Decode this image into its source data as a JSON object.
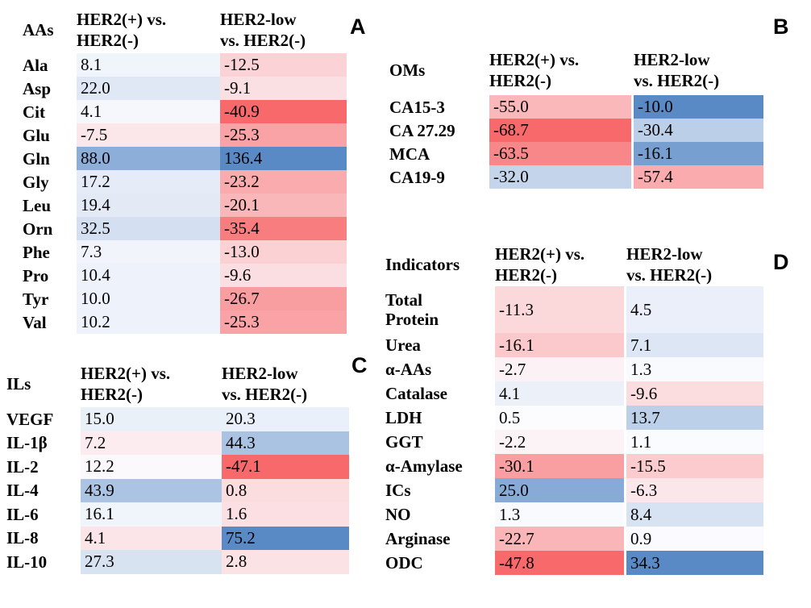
{
  "figure": {
    "background": "#ffffff",
    "colorscale": {
      "min_color": "#F8696B",
      "mid_color": "#FCFCFF",
      "max_color": "#5A8AC6",
      "note": "red = low values, white = midpoint, blue = high values (per-panel scale)"
    }
  },
  "chart_data": [
    {
      "type": "heatmap",
      "panel_letter": "A",
      "row_header": "AAs",
      "columns": [
        "HER2(+) vs. HER2(-)",
        "HER2-low vs. HER2(-)"
      ],
      "column_lines": [
        [
          "HER2(+) vs.",
          "HER2(-)"
        ],
        [
          "HER2-low",
          "vs. HER2(-)"
        ]
      ],
      "rows": [
        "Ala",
        "Asp",
        "Cit",
        "Glu",
        "Gln",
        "Gly",
        "Leu",
        "Orn",
        "Phe",
        "Pro",
        "Tyr",
        "Val"
      ],
      "values": [
        [
          8.1,
          -12.5
        ],
        [
          22.0,
          -9.1
        ],
        [
          4.1,
          -40.9
        ],
        [
          -7.5,
          -25.3
        ],
        [
          88.0,
          136.4
        ],
        [
          17.2,
          -23.2
        ],
        [
          19.4,
          -20.1
        ],
        [
          32.5,
          -35.4
        ],
        [
          7.3,
          -13.0
        ],
        [
          10.4,
          -9.6
        ],
        [
          10.0,
          -26.7
        ],
        [
          10.2,
          -25.3
        ]
      ],
      "cell_colors": [
        [
          "#F0F4FB",
          "#FBD3D6"
        ],
        [
          "#E0E8F5",
          "#FBE0E3"
        ],
        [
          "#F5F7FD",
          "#F8696B"
        ],
        [
          "#FBE6E9",
          "#F9A3A6"
        ],
        [
          "#8CAED9",
          "#5A8AC6"
        ],
        [
          "#E6ECF7",
          "#F9ABAD"
        ],
        [
          "#E3EAF6",
          "#FAB7B9"
        ],
        [
          "#D4E0F1",
          "#F87D7F"
        ],
        [
          "#F1F5FB",
          "#FBD1D4"
        ],
        [
          "#EEF2FA",
          "#FBDEE1"
        ],
        [
          "#EEF2FA",
          "#F99EA0"
        ],
        [
          "#EEF2FA",
          "#F9A3A6"
        ]
      ]
    },
    {
      "type": "heatmap",
      "panel_letter": "B",
      "row_header": "OMs",
      "columns": [
        "HER2(+) vs. HER2(-)",
        "HER2-low vs. HER2(-)"
      ],
      "column_lines": [
        [
          "HER2(+) vs.",
          "HER2(-)"
        ],
        [
          "HER2-low",
          "vs. HER2(-)"
        ]
      ],
      "rows": [
        "CA15-3",
        "CA 27.29",
        "MCA",
        "CA19-9"
      ],
      "values": [
        [
          -55.0,
          -10.0
        ],
        [
          -68.7,
          -30.4
        ],
        [
          -63.5,
          -16.1
        ],
        [
          -32.0,
          -57.4
        ]
      ],
      "cell_colors": [
        [
          "#FAB8BB",
          "#5A8AC6"
        ],
        [
          "#F8696B",
          "#BCCFE8"
        ],
        [
          "#F88789",
          "#779FD0"
        ],
        [
          "#C4D5EB",
          "#FAABAD"
        ]
      ]
    },
    {
      "type": "heatmap",
      "panel_letter": "C",
      "row_header": "ILs",
      "columns": [
        "HER2(+) vs. HER2(-)",
        "HER2-low vs. HER2(-)"
      ],
      "column_lines": [
        [
          "HER2(+) vs.",
          "HER2(-)"
        ],
        [
          "HER2-low",
          "vs. HER2(-)"
        ]
      ],
      "rows": [
        "VEGF",
        "IL-1β",
        "IL-2",
        "IL-4",
        "IL-6",
        "IL-8",
        "IL-10"
      ],
      "values": [
        [
          15.0,
          20.3
        ],
        [
          7.2,
          44.3
        ],
        [
          12.2,
          -47.1
        ],
        [
          43.9,
          0.8
        ],
        [
          16.1,
          1.6
        ],
        [
          4.1,
          75.2
        ],
        [
          27.3,
          2.8
        ]
      ],
      "cell_colors": [
        [
          "#EAF0F8",
          "#EAF0F9"
        ],
        [
          "#FCECEF",
          "#ABC3E3"
        ],
        [
          "#FCF9FC",
          "#F8696B"
        ],
        [
          "#ACC4E3",
          "#FBDDE0"
        ],
        [
          "#F0F4FB",
          "#FBDFE2"
        ],
        [
          "#FBE5E8",
          "#5A8AC6"
        ],
        [
          "#D8E3F2",
          "#FBE2E5"
        ]
      ]
    },
    {
      "type": "heatmap",
      "panel_letter": "D",
      "row_header": "Indicators",
      "columns": [
        "HER2(+) vs. HER2(-)",
        "HER2-low vs. HER2(-)"
      ],
      "column_lines": [
        [
          "HER2(+) vs.",
          "HER2(-)"
        ],
        [
          "HER2-low",
          "vs. HER2(-)"
        ]
      ],
      "rows": [
        "Total Protein",
        "Urea",
        "α-AAs",
        "Catalase",
        "LDH",
        "GGT",
        "α-Amylase",
        "ICs",
        "NO",
        "Arginase",
        "ODC"
      ],
      "values": [
        [
          -11.3,
          4.5
        ],
        [
          -16.1,
          7.1
        ],
        [
          -2.7,
          1.3
        ],
        [
          4.1,
          -9.6
        ],
        [
          0.5,
          13.7
        ],
        [
          -2.2,
          1.1
        ],
        [
          -30.1,
          -15.5
        ],
        [
          25.0,
          -6.3
        ],
        [
          1.3,
          8.4
        ],
        [
          -22.7,
          0.9
        ],
        [
          -47.8,
          34.3
        ]
      ],
      "cell_colors": [
        [
          "#FBD8DA",
          "#EAEFF9"
        ],
        [
          "#FBC9CC",
          "#DDE6F4"
        ],
        [
          "#FCF2F5",
          "#F9FAFE"
        ],
        [
          "#ECF0F9",
          "#FBDCDF"
        ],
        [
          "#FCFCFF",
          "#BDD0E9"
        ],
        [
          "#FCF3F6",
          "#FAFBFE"
        ],
        [
          "#F99FA1",
          "#FBCBCE"
        ],
        [
          "#87AAD6",
          "#FBE7EA"
        ],
        [
          "#F9FAFE",
          "#D7E2F2"
        ],
        [
          "#FAB5B8",
          "#FBFBFF"
        ],
        [
          "#F8696B",
          "#5A8AC6"
        ]
      ]
    }
  ]
}
